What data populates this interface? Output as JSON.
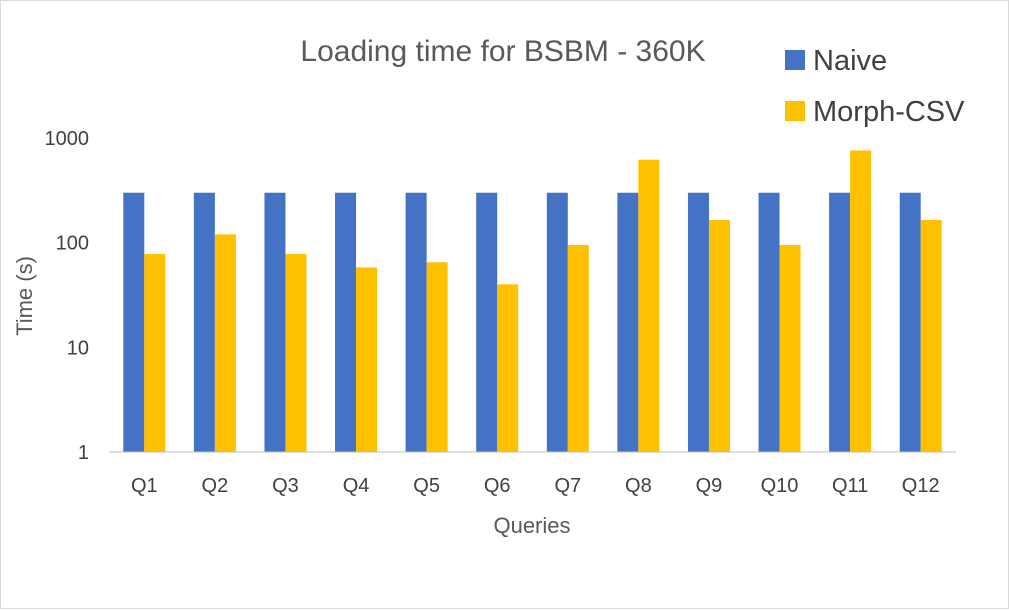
{
  "chart_data": {
    "type": "bar",
    "title": "Loading time for BSBM - 360K",
    "xlabel": "Queries",
    "ylabel": "Time (s)",
    "yscale": "log",
    "ylim": [
      1,
      1000
    ],
    "yticks": [
      "1",
      "10",
      "100",
      "1000"
    ],
    "grid": false,
    "legend_position": "top-right",
    "categories": [
      "Q1",
      "Q2",
      "Q3",
      "Q4",
      "Q5",
      "Q6",
      "Q7",
      "Q8",
      "Q9",
      "Q10",
      "Q11",
      "Q12"
    ],
    "series": [
      {
        "name": "Naive",
        "color": "#4472C4",
        "values": [
          300,
          300,
          300,
          300,
          300,
          300,
          300,
          300,
          300,
          300,
          300,
          300
        ]
      },
      {
        "name": "Morph-CSV",
        "color": "#FFC000",
        "values": [
          78,
          120,
          78,
          58,
          65,
          40,
          95,
          620,
          165,
          95,
          760,
          165
        ]
      }
    ]
  }
}
